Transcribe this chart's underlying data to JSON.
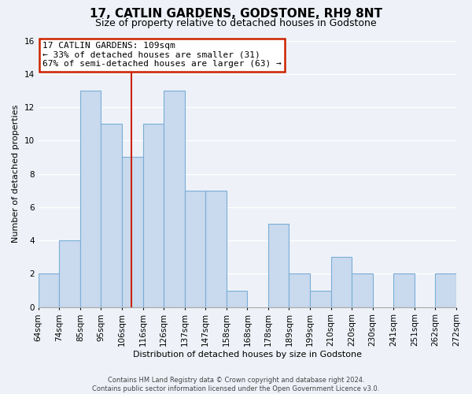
{
  "title": "17, CATLIN GARDENS, GODSTONE, RH9 8NT",
  "subtitle": "Size of property relative to detached houses in Godstone",
  "xlabel": "Distribution of detached houses by size in Godstone",
  "ylabel": "Number of detached properties",
  "footer_line1": "Contains HM Land Registry data © Crown copyright and database right 2024.",
  "footer_line2": "Contains public sector information licensed under the Open Government Licence v3.0.",
  "bin_labels": [
    "64sqm",
    "74sqm",
    "85sqm",
    "95sqm",
    "106sqm",
    "116sqm",
    "126sqm",
    "137sqm",
    "147sqm",
    "158sqm",
    "168sqm",
    "178sqm",
    "189sqm",
    "199sqm",
    "210sqm",
    "220sqm",
    "230sqm",
    "241sqm",
    "251sqm",
    "262sqm",
    "272sqm"
  ],
  "values": [
    2,
    4,
    13,
    11,
    9,
    11,
    13,
    7,
    7,
    1,
    0,
    5,
    2,
    1,
    3,
    2,
    0,
    2,
    0,
    2
  ],
  "vline_position": 4.45,
  "bar_color": "#c9d9ee",
  "bar_edge_color": "#7aaed6",
  "annotation_line1": "17 CATLIN GARDENS: 109sqm",
  "annotation_line2": "← 33% of detached houses are smaller (31)",
  "annotation_line3": "67% of semi-detached houses are larger (63) →",
  "annotation_box_facecolor": "white",
  "annotation_box_edgecolor": "#cc2200",
  "vline_color": "#cc2200",
  "ylim": [
    0,
    16
  ],
  "yticks": [
    0,
    2,
    4,
    6,
    8,
    10,
    12,
    14,
    16
  ],
  "bg_color": "#eef2f8",
  "grid_color": "white",
  "title_fontsize": 11,
  "subtitle_fontsize": 9,
  "axis_label_fontsize": 8,
  "tick_fontsize": 7.5,
  "annotation_fontsize": 8,
  "footer_fontsize": 6
}
